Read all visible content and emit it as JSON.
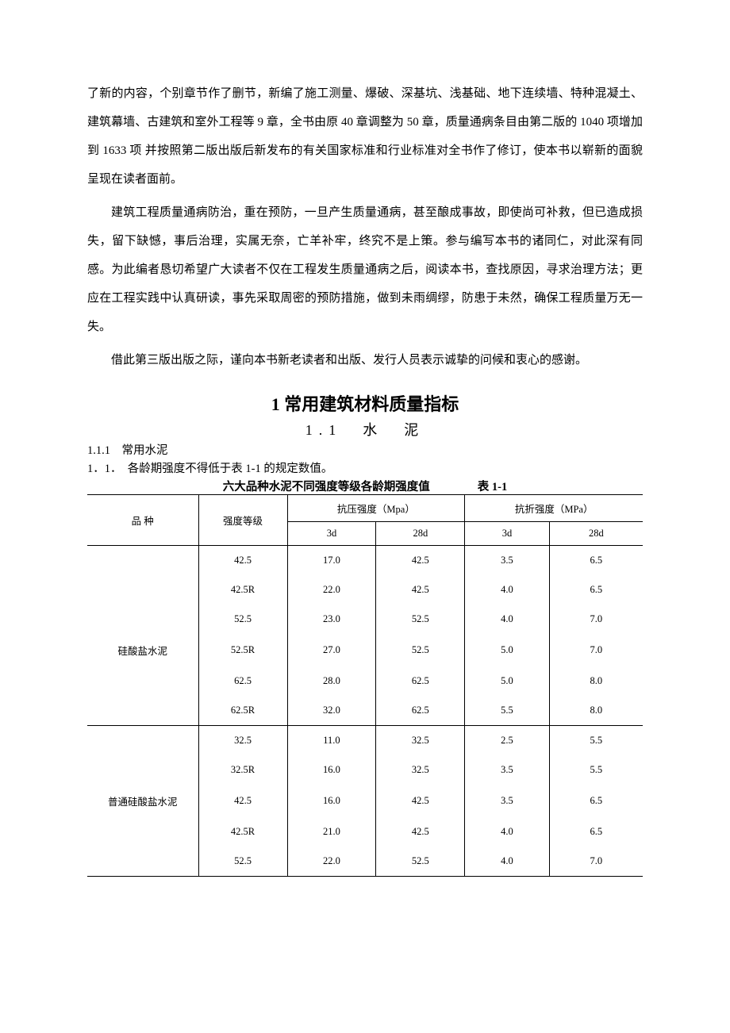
{
  "paragraphs": {
    "p1": "了新的内容，个别章节作了删节，新编了施工测量、爆破、深基坑、浅基础、地下连续墙、特种混凝土、建筑幕墙、古建筑和室外工程等 9 章，全书由原 40 章调整为 50 章，质量通病条目由第二版的 1040 项增加到 1633 项 并按照第二版出版后新发布的有关国家标准和行业标准对全书作了修订，使本书以崭新的面貌呈现在读者面前。",
    "p2": "建筑工程质量通病防治，重在预防，一旦产生质量通病，甚至酿成事故，即使尚可补救，但已造成损失，留下缺憾，事后治理，实属无奈，亡羊补牢，终究不是上策。参与编写本书的诸同仁，对此深有同感。为此编者恳切希望广大读者不仅在工程发生质量通病之后，阅读本书，查找原因，寻求治理方法；更应在工程实践中认真研读，事先采取周密的预防措施，做到未雨绸缪，防患于未然，确保工程质量万无一失。",
    "p3": "借此第三版出版之际，谨向本书新老读者和出版、发行人员表示诚挚的问候和衷心的感谢。"
  },
  "chapter_title": "1 常用建筑材料质量指标",
  "section_title": "1.1　水　泥",
  "subsection_title": "1.1.1　常用水泥",
  "item_text": "1．1．　各龄期强度不得低于表 1-1 的规定数值。",
  "table": {
    "caption": "六大品种水泥不同强度等级各龄期强度值",
    "label": "表 1-1",
    "header": {
      "col_variety": "品 种",
      "col_grade": "强度等级",
      "col_comp": "抗压强度（Mpa）",
      "col_flex": "抗折强度（MPa）",
      "sub_3d": "3d",
      "sub_28d": "28d"
    },
    "groups": [
      {
        "name": "硅酸盐水泥",
        "rows": [
          {
            "grade": "42.5",
            "c3": "17.0",
            "c28": "42.5",
            "f3": "3.5",
            "f28": "6.5"
          },
          {
            "grade": "42.5R",
            "c3": "22.0",
            "c28": "42.5",
            "f3": "4.0",
            "f28": "6.5"
          },
          {
            "grade": "52.5",
            "c3": "23.0",
            "c28": "52.5",
            "f3": "4.0",
            "f28": "7.0"
          },
          {
            "grade": "52.5R",
            "c3": "27.0",
            "c28": "52.5",
            "f3": "5.0",
            "f28": "7.0"
          },
          {
            "grade": "62.5",
            "c3": "28.0",
            "c28": "62.5",
            "f3": "5.0",
            "f28": "8.0"
          },
          {
            "grade": "62.5R",
            "c3": "32.0",
            "c28": "62.5",
            "f3": "5.5",
            "f28": "8.0"
          }
        ]
      },
      {
        "name": "普通硅酸盐水泥",
        "rows": [
          {
            "grade": "32.5",
            "c3": "11.0",
            "c28": "32.5",
            "f3": "2.5",
            "f28": "5.5"
          },
          {
            "grade": "32.5R",
            "c3": "16.0",
            "c28": "32.5",
            "f3": "3.5",
            "f28": "5.5"
          },
          {
            "grade": "42.5",
            "c3": "16.0",
            "c28": "42.5",
            "f3": "3.5",
            "f28": "6.5"
          },
          {
            "grade": "42.5R",
            "c3": "21.0",
            "c28": "42.5",
            "f3": "4.0",
            "f28": "6.5"
          },
          {
            "grade": "52.5",
            "c3": "22.0",
            "c28": "52.5",
            "f3": "4.0",
            "f28": "7.0"
          }
        ]
      }
    ]
  }
}
